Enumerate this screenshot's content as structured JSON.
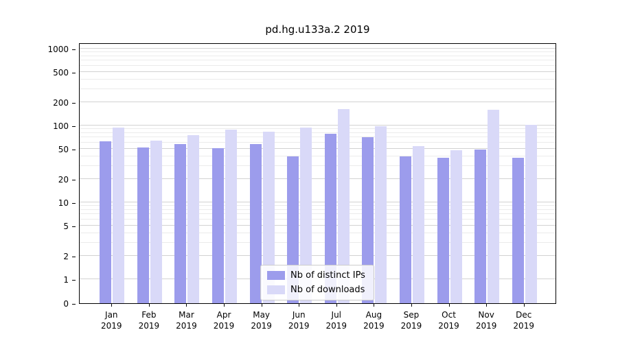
{
  "title": "pd.hg.u133a.2 2019",
  "chart_data": {
    "type": "bar",
    "scale": "symlog",
    "title": "pd.hg.u133a.2 2019",
    "categories": [
      "Jan",
      "Feb",
      "Mar",
      "Apr",
      "May",
      "Jun",
      "Jul",
      "Aug",
      "Sep",
      "Oct",
      "Nov",
      "Dec"
    ],
    "year": "2019",
    "series": [
      {
        "name": "Nb of distinct IPs",
        "color": "#9c9cec",
        "values": [
          62,
          52,
          58,
          51,
          58,
          40,
          78,
          70,
          40,
          38,
          49,
          38
        ]
      },
      {
        "name": "Nb of downloads",
        "color": "#d9d9f8",
        "values": [
          95,
          63,
          75,
          88,
          83,
          95,
          165,
          97,
          54,
          48,
          160,
          102
        ]
      }
    ],
    "yticks": [
      0,
      1,
      2,
      5,
      10,
      20,
      50,
      100,
      200,
      500,
      1000
    ],
    "minor_ticks": [
      3,
      4,
      6,
      7,
      8,
      9,
      30,
      40,
      60,
      70,
      80,
      90,
      300,
      400,
      600,
      700,
      800,
      900
    ],
    "ylim": [
      0,
      1300
    ],
    "grid": true,
    "legend_position": "lower center",
    "xlabel": "",
    "ylabel": ""
  }
}
